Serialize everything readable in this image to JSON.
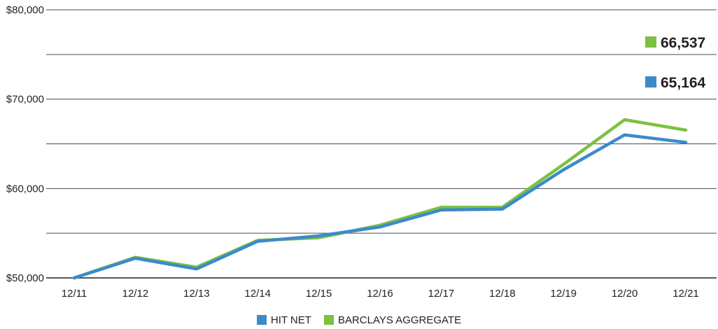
{
  "chart_data": {
    "type": "line",
    "categories": [
      "12/11",
      "12/12",
      "12/13",
      "12/14",
      "12/15",
      "12/16",
      "12/17",
      "12/18",
      "12/19",
      "12/20",
      "12/21"
    ],
    "series": [
      {
        "name": "HIT NET",
        "color": "#3b8bca",
        "values": [
          50000,
          52200,
          51000,
          54100,
          54700,
          55700,
          57600,
          57700,
          62100,
          66000,
          65164
        ]
      },
      {
        "name": "BARCLAYS AGGREGATE",
        "color": "#7dc142",
        "values": [
          50000,
          52300,
          51200,
          54200,
          54500,
          55900,
          57900,
          57900,
          62700,
          67700,
          66537
        ]
      }
    ],
    "end_labels": [
      {
        "series": "BARCLAYS AGGREGATE",
        "value": "66,537",
        "color": "#7dc142"
      },
      {
        "series": "HIT NET",
        "value": "65,164",
        "color": "#3b8bca"
      }
    ],
    "title": "",
    "xlabel": "",
    "ylabel": "",
    "ylim": [
      50000,
      80000
    ],
    "y_ticks": [
      50000,
      60000,
      70000,
      80000
    ],
    "y_tick_labels": [
      "$50,000",
      "$60,000",
      "$70,000",
      "$80,000"
    ],
    "grid": true,
    "legend_position": "bottom"
  }
}
